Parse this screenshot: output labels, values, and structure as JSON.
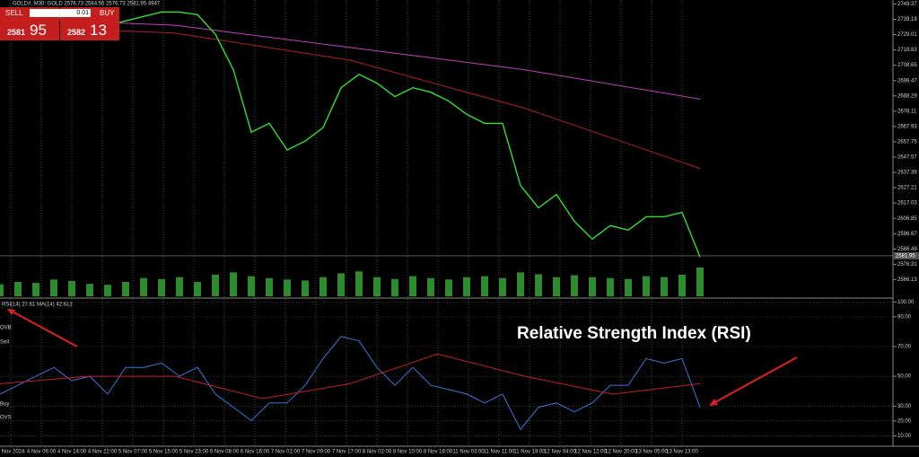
{
  "title_bar": "GOLD#, M30:  GOLD  2576.73 2584.56 2576.73 2581.95  4947",
  "trade_panel": {
    "sell_label": "SELL",
    "buy_label": "BUY",
    "lot": "0.01",
    "sell_big": "2581",
    "sell_small": "95",
    "buy_big": "2582",
    "buy_small": "13"
  },
  "price_chart": {
    "ylim": [
      2561,
      2752
    ],
    "yticks": [
      2749.37,
      2739.19,
      2729.01,
      2718.83,
      2708.65,
      2698.47,
      2688.29,
      2678.11,
      2667.93,
      2657.75,
      2647.57,
      2637.39,
      2627.21,
      2617.03,
      2606.85,
      2596.67,
      2586.49,
      2576.31,
      2566.13
    ],
    "current_price": 2581.95,
    "close": [
      2738.1,
      2738.1,
      2741.1,
      2739.9,
      2739.9,
      2738.1,
      2735.2,
      2738.1,
      2741.1,
      2744.0,
      2744.0,
      2742.3,
      2729.2,
      2705.6,
      2664.1,
      2670.0,
      2652.3,
      2658.2,
      2667.1,
      2693.7,
      2702.6,
      2696.7,
      2687.8,
      2693.7,
      2690.7,
      2684.8,
      2676.0,
      2670.0,
      2670.0,
      2628.6,
      2613.8,
      2622.7,
      2604.9,
      2593.1,
      2602.0,
      2599.0,
      2607.9,
      2607.9,
      2610.8,
      2581.2
    ],
    "ma_red": [
      2735,
      2730,
      2712,
      2680,
      2640
    ],
    "ma_magenta": [
      2739.9,
      2735.2,
      2720.4,
      2705.6,
      2686.1
    ],
    "volume": [
      2500,
      3000,
      2800,
      3500,
      3200,
      2600,
      2400,
      3000,
      3800,
      3600,
      4000,
      3000,
      4500,
      5000,
      4200,
      3800,
      3500,
      3300,
      4000,
      4800,
      5200,
      4000,
      3600,
      4200,
      3800,
      3500,
      4000,
      4200,
      3800,
      5000,
      4600,
      4000,
      4400,
      4000,
      3800,
      3600,
      4200,
      4000,
      4500,
      6000
    ]
  },
  "rsi_chart": {
    "legend": "RSI(14) 27.61 MA(14) 42.613",
    "ylim": [
      3,
      102
    ],
    "yticks": [
      {
        "value": 100,
        "label": "100.00"
      },
      {
        "value": 90,
        "label": "90.00"
      },
      {
        "value": 70,
        "label": "70.00"
      },
      {
        "value": 50,
        "label": "50.00"
      },
      {
        "value": 30,
        "label": "30.00"
      },
      {
        "value": 20,
        "label": "20.00"
      },
      {
        "value": 10,
        "label": "10.00"
      }
    ],
    "rsi": [
      38.1,
      44.0,
      50.0,
      56.0,
      47.0,
      50.0,
      38.1,
      56.0,
      56.0,
      58.9,
      50.0,
      56.0,
      38.1,
      29.2,
      20.2,
      32.1,
      32.1,
      44.0,
      61.9,
      76.8,
      73.8,
      56.0,
      44.0,
      56.0,
      44.0,
      41.1,
      38.1,
      32.1,
      38.1,
      14.3,
      29.2,
      32.1,
      26.2,
      32.1,
      44.0,
      44.0,
      61.9,
      58.9,
      61.9,
      29.2
    ],
    "rsi_ma": [
      45,
      50,
      50,
      35,
      45,
      65,
      50,
      38,
      45
    ],
    "level_labels": [
      "OVB",
      "Sell",
      "Buy",
      "OVS"
    ]
  },
  "time_axis": [
    "1 Nov 2024",
    "4 Nov 06:00",
    "4 Nov 14:00",
    "4 Nov 22:00",
    "5 Nov 07:00",
    "5 Nov 15:00",
    "5 Nov 23:00",
    "6 Nov 08:00",
    "6 Nov 16:00",
    "7 Nov 01:00",
    "7 Nov 09:00",
    "7 Nov 17:00",
    "8 Nov 02:00",
    "8 Nov 10:00",
    "8 Nov 18:00",
    "11 Nov 03:00",
    "11 Nov 11:00",
    "11 Nov 19:00",
    "12 Nov 04:00",
    "12 Nov 12:00",
    "12 Nov 20:00",
    "13 Nov 05:00",
    "13 Nov 13:00"
  ],
  "annotation": "Relative Strength Index (RSI)"
}
